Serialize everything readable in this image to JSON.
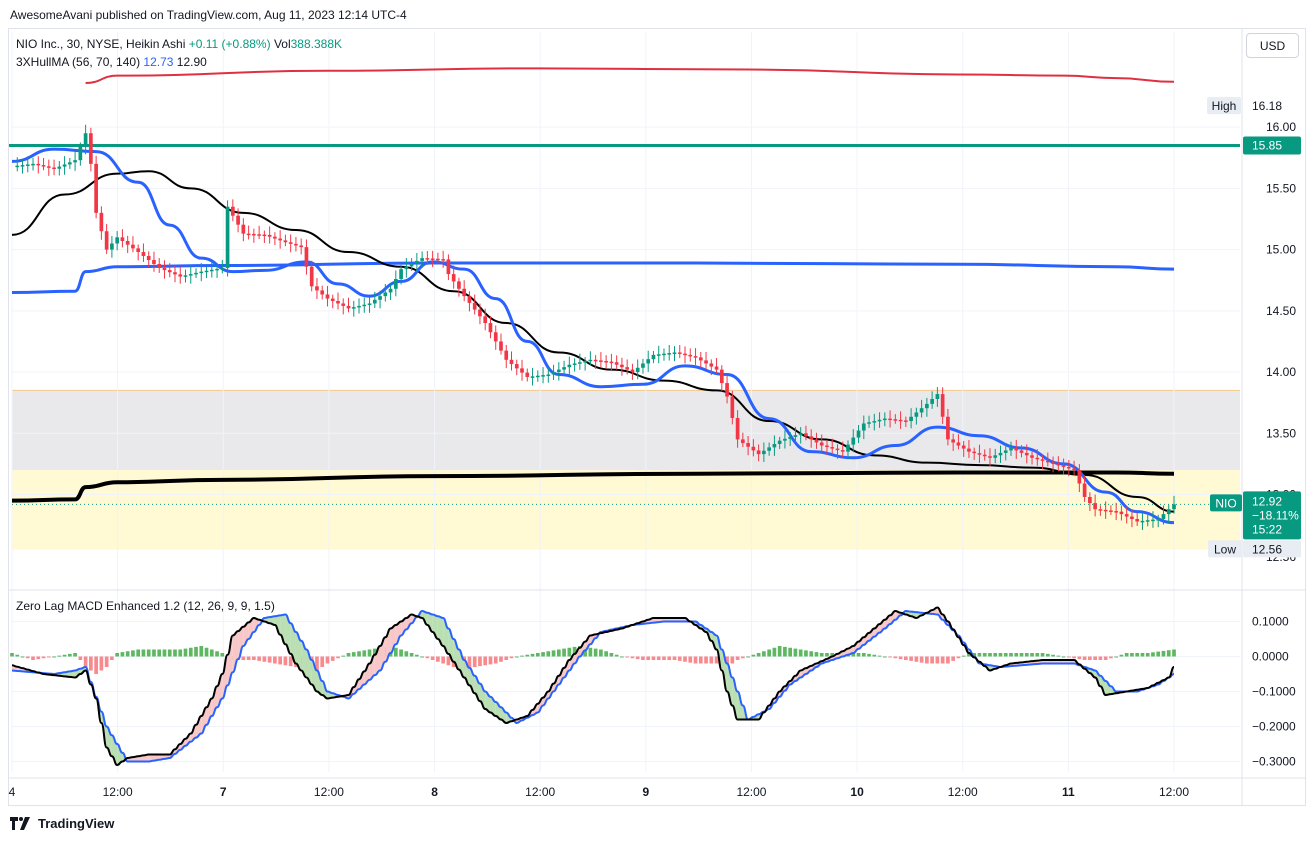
{
  "header": {
    "published": "AwesomeAvani published on TradingView.com, Aug 11, 2023 12:14 UTC-4"
  },
  "legend": {
    "symbol": "NIO Inc., 30, NYSE, Heikin Ashi",
    "change": "+0.11 (+0.88%)",
    "vol_label": "Vol",
    "vol_value": "388.388K",
    "indicator": "3XHullMA (56, 70, 140)",
    "hull_value1": "12.73",
    "hull_value2": "12.90",
    "macd_title": "Zero Lag MACD Enhanced 1.2 (12, 26, 9, 9, 1.5)"
  },
  "currency_button": "USD",
  "footer": {
    "brand": "TradingView"
  },
  "colors": {
    "up": "#089981",
    "down": "#f23645",
    "hull_black": "#000000",
    "hull_blue": "#2962ff",
    "hull_red": "#e03040",
    "resistance": "#089981",
    "grey_zone": "#e9e9ec",
    "yellow_zone": "#fff9d4",
    "macd_pos": "#4caf50",
    "macd_neg": "#f77c80"
  },
  "chart_data": [
    {
      "type": "candlestick",
      "style": "Heikin Ashi",
      "interval": "30",
      "y_axis": {
        "ticks": [
          "16.00",
          "15.50",
          "15.00",
          "14.50",
          "14.00",
          "13.50",
          "13.00",
          "12.56"
        ],
        "tick_values": [
          16.0,
          15.5,
          15.0,
          14.5,
          14.0,
          13.5,
          13.0
        ],
        "range": [
          12.4,
          16.45
        ]
      },
      "x_axis": {
        "ticks": [
          "4",
          "12:00",
          "7",
          "12:00",
          "8",
          "12:00",
          "9",
          "12:00",
          "10",
          "12:00",
          "11",
          "12:00"
        ],
        "bold_ticks": [
          "7",
          "8",
          "9",
          "10",
          "11"
        ],
        "bar_range": [
          0,
          221
        ]
      },
      "labels": {
        "high_label": "High",
        "high_value": "16.18",
        "low_label": "Low",
        "low_value": "12.56",
        "level_value": "15.85",
        "last_symbol": "NIO",
        "last_price": "12.92",
        "last_change": "−18.11%",
        "countdown": "15:22"
      },
      "levels": {
        "resistance": 15.85,
        "grey_zone": [
          13.2,
          13.85
        ],
        "yellow_zone": [
          12.55,
          13.2
        ],
        "last_price": 12.92
      },
      "price_path": [
        [
          0,
          15.68
        ],
        [
          4,
          15.7
        ],
        [
          8,
          15.66
        ],
        [
          12,
          15.73
        ],
        [
          14,
          15.95
        ],
        [
          15,
          15.7
        ],
        [
          16,
          15.3
        ],
        [
          18,
          15.0
        ],
        [
          20,
          15.1
        ],
        [
          24,
          14.98
        ],
        [
          28,
          14.85
        ],
        [
          32,
          14.78
        ],
        [
          36,
          14.82
        ],
        [
          40,
          14.85
        ],
        [
          41,
          15.35
        ],
        [
          44,
          15.13
        ],
        [
          48,
          15.12
        ],
        [
          52,
          15.06
        ],
        [
          55,
          15.02
        ],
        [
          57,
          14.7
        ],
        [
          60,
          14.6
        ],
        [
          64,
          14.52
        ],
        [
          68,
          14.56
        ],
        [
          72,
          14.68
        ],
        [
          74,
          14.84
        ],
        [
          78,
          14.93
        ],
        [
          82,
          14.92
        ],
        [
          83,
          14.8
        ],
        [
          86,
          14.62
        ],
        [
          90,
          14.4
        ],
        [
          94,
          14.1
        ],
        [
          98,
          13.96
        ],
        [
          102,
          13.98
        ],
        [
          106,
          14.06
        ],
        [
          110,
          14.1
        ],
        [
          114,
          14.08
        ],
        [
          118,
          14.0
        ],
        [
          122,
          14.14
        ],
        [
          126,
          14.16
        ],
        [
          130,
          14.12
        ],
        [
          134,
          14.02
        ],
        [
          136,
          13.8
        ],
        [
          138,
          13.45
        ],
        [
          142,
          13.33
        ],
        [
          146,
          13.44
        ],
        [
          150,
          13.5
        ],
        [
          154,
          13.4
        ],
        [
          158,
          13.35
        ],
        [
          162,
          13.58
        ],
        [
          166,
          13.62
        ],
        [
          170,
          13.6
        ],
        [
          174,
          13.74
        ],
        [
          176,
          13.82
        ],
        [
          178,
          13.45
        ],
        [
          182,
          13.35
        ],
        [
          186,
          13.3
        ],
        [
          190,
          13.38
        ],
        [
          194,
          13.3
        ],
        [
          198,
          13.25
        ],
        [
          202,
          13.2
        ],
        [
          204,
          12.98
        ],
        [
          206,
          12.88
        ],
        [
          210,
          12.86
        ],
        [
          214,
          12.78
        ],
        [
          218,
          12.8
        ],
        [
          221,
          12.92
        ]
      ],
      "hull_black": [
        [
          0,
          15.12
        ],
        [
          10,
          15.45
        ],
        [
          20,
          15.62
        ],
        [
          26,
          15.64
        ],
        [
          34,
          15.5
        ],
        [
          44,
          15.3
        ],
        [
          54,
          15.16
        ],
        [
          64,
          14.98
        ],
        [
          74,
          14.86
        ],
        [
          84,
          14.66
        ],
        [
          94,
          14.4
        ],
        [
          104,
          14.16
        ],
        [
          114,
          14.02
        ],
        [
          124,
          13.93
        ],
        [
          134,
          13.85
        ],
        [
          144,
          13.6
        ],
        [
          154,
          13.45
        ],
        [
          164,
          13.32
        ],
        [
          174,
          13.26
        ],
        [
          184,
          13.24
        ],
        [
          194,
          13.22
        ],
        [
          204,
          13.16
        ],
        [
          214,
          12.98
        ],
        [
          221,
          12.86
        ]
      ],
      "hull_blue_fast": [
        [
          0,
          15.72
        ],
        [
          8,
          15.82
        ],
        [
          16,
          15.8
        ],
        [
          24,
          15.55
        ],
        [
          30,
          15.2
        ],
        [
          36,
          14.93
        ],
        [
          42,
          14.82
        ],
        [
          48,
          14.83
        ],
        [
          56,
          14.9
        ],
        [
          62,
          14.72
        ],
        [
          68,
          14.62
        ],
        [
          74,
          14.74
        ],
        [
          80,
          14.9
        ],
        [
          86,
          14.84
        ],
        [
          92,
          14.6
        ],
        [
          98,
          14.25
        ],
        [
          104,
          13.98
        ],
        [
          112,
          13.88
        ],
        [
          120,
          13.9
        ],
        [
          128,
          14.05
        ],
        [
          136,
          13.98
        ],
        [
          144,
          13.62
        ],
        [
          152,
          13.35
        ],
        [
          160,
          13.3
        ],
        [
          168,
          13.4
        ],
        [
          176,
          13.55
        ],
        [
          184,
          13.48
        ],
        [
          192,
          13.38
        ],
        [
          200,
          13.25
        ],
        [
          208,
          13.02
        ],
        [
          214,
          12.86
        ],
        [
          221,
          12.77
        ]
      ],
      "hull_blue_slow": [
        [
          0,
          14.65
        ],
        [
          12,
          14.66
        ],
        [
          14,
          14.82
        ],
        [
          20,
          14.86
        ],
        [
          40,
          14.87
        ],
        [
          80,
          14.89
        ],
        [
          130,
          14.89
        ],
        [
          180,
          14.88
        ],
        [
          210,
          14.86
        ],
        [
          221,
          14.84
        ]
      ],
      "hull_black_slow": [
        [
          0,
          12.95
        ],
        [
          12,
          12.96
        ],
        [
          14,
          13.06
        ],
        [
          20,
          13.1
        ],
        [
          40,
          13.12
        ],
        [
          80,
          13.15
        ],
        [
          130,
          13.17
        ],
        [
          180,
          13.18
        ],
        [
          210,
          13.18
        ],
        [
          221,
          13.17
        ]
      ],
      "hull_red": [
        [
          14,
          16.36
        ],
        [
          20,
          16.42
        ],
        [
          60,
          16.46
        ],
        [
          100,
          16.48
        ],
        [
          140,
          16.47
        ],
        [
          180,
          16.43
        ],
        [
          200,
          16.42
        ],
        [
          210,
          16.4
        ],
        [
          221,
          16.37
        ]
      ]
    },
    {
      "type": "line",
      "title": "Zero Lag MACD Enhanced 1.2 (12, 26, 9, 9, 1.5)",
      "y_axis": {
        "ticks": [
          "0.1000",
          "0.0000",
          "−0.1000",
          "−0.2000",
          "−0.3000"
        ],
        "tick_values": [
          0.1,
          0.0,
          -0.1,
          -0.2,
          -0.3
        ],
        "range": [
          -0.33,
          0.15
        ]
      },
      "macd": [
        [
          0,
          -0.025
        ],
        [
          6,
          -0.05
        ],
        [
          12,
          -0.06
        ],
        [
          14,
          -0.04
        ],
        [
          16,
          -0.12
        ],
        [
          18,
          -0.26
        ],
        [
          20,
          -0.31
        ],
        [
          22,
          -0.29
        ],
        [
          26,
          -0.28
        ],
        [
          30,
          -0.28
        ],
        [
          34,
          -0.22
        ],
        [
          38,
          -0.12
        ],
        [
          40,
          -0.05
        ],
        [
          42,
          0.06
        ],
        [
          46,
          0.11
        ],
        [
          50,
          0.09
        ],
        [
          54,
          -0.02
        ],
        [
          58,
          -0.1
        ],
        [
          60,
          -0.12
        ],
        [
          64,
          -0.11
        ],
        [
          68,
          -0.02
        ],
        [
          72,
          0.08
        ],
        [
          76,
          0.12
        ],
        [
          78,
          0.11
        ],
        [
          82,
          0.03
        ],
        [
          86,
          -0.06
        ],
        [
          90,
          -0.15
        ],
        [
          94,
          -0.19
        ],
        [
          98,
          -0.17
        ],
        [
          102,
          -0.1
        ],
        [
          106,
          -0.01
        ],
        [
          110,
          0.06
        ],
        [
          116,
          0.08
        ],
        [
          122,
          0.11
        ],
        [
          128,
          0.11
        ],
        [
          132,
          0.07
        ],
        [
          134,
          0.02
        ],
        [
          136,
          -0.1
        ],
        [
          138,
          -0.18
        ],
        [
          142,
          -0.18
        ],
        [
          146,
          -0.1
        ],
        [
          150,
          -0.04
        ],
        [
          156,
          0.0
        ],
        [
          160,
          0.03
        ],
        [
          164,
          0.08
        ],
        [
          168,
          0.13
        ],
        [
          172,
          0.11
        ],
        [
          176,
          0.14
        ],
        [
          178,
          0.1
        ],
        [
          182,
          0.01
        ],
        [
          186,
          -0.04
        ],
        [
          190,
          -0.02
        ],
        [
          196,
          -0.01
        ],
        [
          202,
          -0.01
        ],
        [
          206,
          -0.06
        ],
        [
          208,
          -0.11
        ],
        [
          212,
          -0.1
        ],
        [
          216,
          -0.09
        ],
        [
          220,
          -0.06
        ],
        [
          221,
          -0.03
        ]
      ],
      "signal": [
        [
          0,
          -0.04
        ],
        [
          8,
          -0.05
        ],
        [
          12,
          -0.04
        ],
        [
          14,
          -0.03
        ],
        [
          18,
          -0.2
        ],
        [
          22,
          -0.3
        ],
        [
          26,
          -0.3
        ],
        [
          30,
          -0.29
        ],
        [
          36,
          -0.22
        ],
        [
          40,
          -0.12
        ],
        [
          44,
          0.03
        ],
        [
          48,
          0.11
        ],
        [
          52,
          0.12
        ],
        [
          56,
          0.02
        ],
        [
          60,
          -0.1
        ],
        [
          64,
          -0.12
        ],
        [
          70,
          -0.04
        ],
        [
          74,
          0.06
        ],
        [
          78,
          0.13
        ],
        [
          82,
          0.11
        ],
        [
          86,
          -0.01
        ],
        [
          90,
          -0.1
        ],
        [
          96,
          -0.19
        ],
        [
          100,
          -0.16
        ],
        [
          104,
          -0.08
        ],
        [
          108,
          0.0
        ],
        [
          112,
          0.07
        ],
        [
          118,
          0.09
        ],
        [
          124,
          0.1
        ],
        [
          130,
          0.1
        ],
        [
          134,
          0.06
        ],
        [
          136,
          -0.02
        ],
        [
          140,
          -0.18
        ],
        [
          144,
          -0.15
        ],
        [
          148,
          -0.08
        ],
        [
          154,
          -0.02
        ],
        [
          160,
          0.01
        ],
        [
          166,
          0.08
        ],
        [
          170,
          0.13
        ],
        [
          176,
          0.12
        ],
        [
          180,
          0.06
        ],
        [
          184,
          -0.02
        ],
        [
          188,
          -0.03
        ],
        [
          196,
          -0.02
        ],
        [
          202,
          -0.02
        ],
        [
          206,
          -0.04
        ],
        [
          210,
          -0.1
        ],
        [
          214,
          -0.1
        ],
        [
          218,
          -0.08
        ],
        [
          221,
          -0.05
        ]
      ],
      "histogram": [
        [
          0,
          0.01
        ],
        [
          4,
          -0.01
        ],
        [
          8,
          0.0
        ],
        [
          12,
          0.01
        ],
        [
          14,
          -0.03
        ],
        [
          16,
          -0.05
        ],
        [
          18,
          -0.03
        ],
        [
          20,
          0.01
        ],
        [
          24,
          0.02
        ],
        [
          28,
          0.02
        ],
        [
          32,
          0.02
        ],
        [
          36,
          0.03
        ],
        [
          38,
          0.02
        ],
        [
          40,
          0.01
        ],
        [
          42,
          -0.01
        ],
        [
          46,
          -0.01
        ],
        [
          50,
          -0.02
        ],
        [
          54,
          -0.03
        ],
        [
          58,
          -0.04
        ],
        [
          60,
          -0.02
        ],
        [
          64,
          0.01
        ],
        [
          68,
          0.02
        ],
        [
          72,
          0.03
        ],
        [
          74,
          0.02
        ],
        [
          78,
          0.0
        ],
        [
          82,
          -0.02
        ],
        [
          86,
          -0.04
        ],
        [
          88,
          -0.03
        ],
        [
          92,
          -0.02
        ],
        [
          96,
          0.0
        ],
        [
          100,
          0.01
        ],
        [
          104,
          0.02
        ],
        [
          108,
          0.03
        ],
        [
          112,
          0.02
        ],
        [
          116,
          0.0
        ],
        [
          120,
          -0.01
        ],
        [
          126,
          -0.01
        ],
        [
          130,
          -0.02
        ],
        [
          134,
          -0.02
        ],
        [
          136,
          -0.03
        ],
        [
          138,
          -0.01
        ],
        [
          142,
          0.01
        ],
        [
          146,
          0.03
        ],
        [
          150,
          0.02
        ],
        [
          154,
          0.01
        ],
        [
          158,
          0.01
        ],
        [
          162,
          0.01
        ],
        [
          166,
          0.0
        ],
        [
          170,
          -0.01
        ],
        [
          174,
          -0.02
        ],
        [
          178,
          -0.02
        ],
        [
          182,
          0.01
        ],
        [
          186,
          0.01
        ],
        [
          190,
          0.01
        ],
        [
          196,
          0.01
        ],
        [
          200,
          0.0
        ],
        [
          204,
          -0.01
        ],
        [
          208,
          -0.01
        ],
        [
          212,
          0.01
        ],
        [
          216,
          0.01
        ],
        [
          221,
          0.02
        ]
      ]
    }
  ]
}
